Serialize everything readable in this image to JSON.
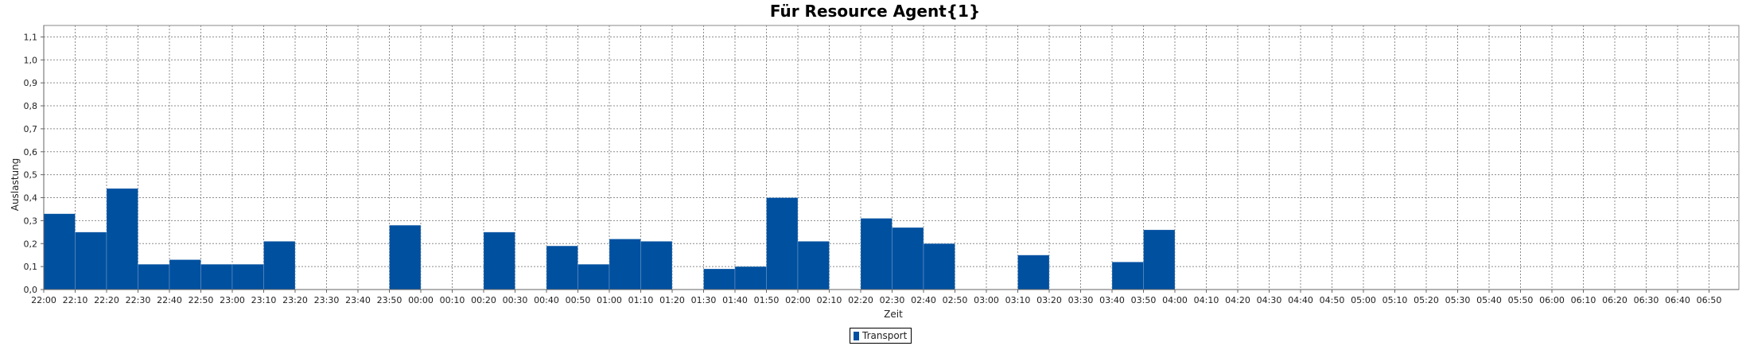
{
  "chart_data": {
    "type": "bar",
    "title": "Für Resource Agent{1}",
    "xlabel": "Zeit",
    "ylabel": "Auslastung",
    "ylim": [
      0,
      1.15
    ],
    "yticks": [
      "0,0",
      "0,1",
      "0,2",
      "0,3",
      "0,4",
      "0,5",
      "0,6",
      "0,7",
      "0,8",
      "0,9",
      "1,0",
      "1,1"
    ],
    "grid": true,
    "legend_position": "bottom",
    "color": "#0050a0",
    "categories": [
      "22:00",
      "22:10",
      "22:20",
      "22:30",
      "22:40",
      "22:50",
      "23:00",
      "23:10",
      "23:20",
      "23:30",
      "23:40",
      "23:50",
      "00:00",
      "00:10",
      "00:20",
      "00:30",
      "00:40",
      "00:50",
      "01:00",
      "01:10",
      "01:20",
      "01:30",
      "01:40",
      "01:50",
      "02:00",
      "02:10",
      "02:20",
      "02:30",
      "02:40",
      "02:50",
      "03:00",
      "03:10",
      "03:20",
      "03:30",
      "03:40",
      "03:50",
      "04:00",
      "04:10",
      "04:20",
      "04:30",
      "04:40",
      "04:50",
      "05:00",
      "05:10",
      "05:20",
      "05:30",
      "05:40",
      "05:50",
      "06:00",
      "06:10",
      "06:20",
      "06:30",
      "06:40",
      "06:50"
    ],
    "series": [
      {
        "name": "Transport",
        "values": [
          0.33,
          0.25,
          0.44,
          0.11,
          0.13,
          0.11,
          0.11,
          0.21,
          0,
          0,
          0,
          0.28,
          0,
          0,
          0.25,
          0,
          0.19,
          0.11,
          0.22,
          0.21,
          0,
          0.09,
          0.1,
          0.4,
          0.21,
          0,
          0.31,
          0.27,
          0.2,
          0,
          0,
          0.15,
          0,
          0,
          0.12,
          0.26,
          0,
          0,
          0,
          0,
          0,
          0,
          0,
          0,
          0,
          0,
          0,
          0,
          0,
          0,
          0,
          0,
          0,
          0
        ]
      }
    ]
  }
}
